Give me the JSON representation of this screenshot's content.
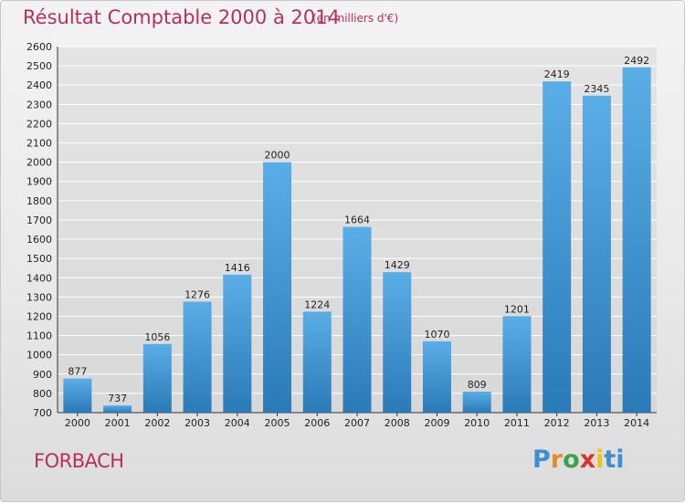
{
  "title": "Résultat Comptable 2000 à 2014",
  "subtitle": "(en milliers d'€)",
  "city": "FORBACH",
  "logo": [
    "P",
    "r",
    "o",
    "x",
    "i",
    "ti"
  ],
  "colors": {
    "bar_light": "#5aaee6",
    "bar_dark": "#2a7ab8",
    "title": "#b5305a",
    "grid": "#ffffff"
  },
  "chart_data": {
    "type": "bar",
    "categories": [
      "2000",
      "2001",
      "2002",
      "2003",
      "2004",
      "2005",
      "2006",
      "2007",
      "2008",
      "2009",
      "2010",
      "2011",
      "2012",
      "2013",
      "2014"
    ],
    "values": [
      877,
      737,
      1056,
      1276,
      1416,
      2000,
      1224,
      1664,
      1429,
      1070,
      809,
      1201,
      2419,
      2345,
      2492
    ],
    "title": "Résultat Comptable 2000 à 2014",
    "ylim": [
      700,
      2600
    ],
    "yticks": [
      700,
      800,
      900,
      1000,
      1100,
      1200,
      1300,
      1400,
      1500,
      1600,
      1700,
      1800,
      1900,
      2000,
      2100,
      2200,
      2300,
      2400,
      2500,
      2600
    ],
    "grid": true
  }
}
